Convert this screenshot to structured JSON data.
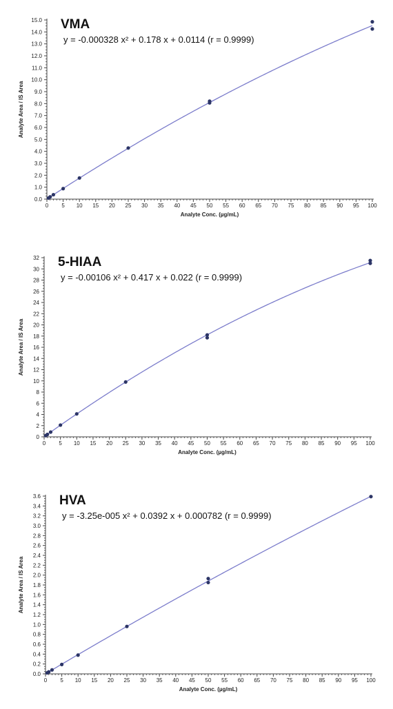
{
  "chart_data": [
    {
      "type": "scatter",
      "title": "VMA",
      "equation": "y = -0.000328 x² + 0.178 x + 0.0114 (r = 0.9999)",
      "xlabel": "Analyte Conc. (µg/mL)",
      "ylabel": "Analyte Area / IS Area",
      "xlim": [
        0,
        100
      ],
      "ylim": [
        0,
        15
      ],
      "x_ticks": [
        0,
        5,
        10,
        15,
        20,
        25,
        30,
        35,
        40,
        45,
        50,
        55,
        60,
        65,
        70,
        75,
        80,
        85,
        90,
        95,
        100
      ],
      "x_tick_labels": [
        "0",
        "5",
        "10",
        "15",
        "20",
        "25",
        "30",
        "35",
        "40",
        "45",
        "50",
        "55",
        "60",
        "65",
        "70",
        "75",
        "80",
        "85",
        "90",
        "95",
        "100"
      ],
      "y_ticks": [
        0,
        1,
        2,
        3,
        4,
        5,
        6,
        7,
        8,
        9,
        10,
        11,
        12,
        13,
        14,
        15
      ],
      "y_tick_labels": [
        "0.0",
        "1.0",
        "2.0",
        "3.0",
        "4.0",
        "5.0",
        "6.0",
        "7.0",
        "8.0",
        "9.0",
        "10.0",
        "11.0",
        "12.0",
        "13.0",
        "14.0",
        "15.0"
      ],
      "curve": {
        "a": -0.000328,
        "b": 0.178,
        "c": 0.0114
      },
      "points": {
        "x": [
          0.5,
          1,
          2,
          5,
          10,
          25,
          50,
          50,
          100,
          100
        ],
        "y": [
          0.09,
          0.19,
          0.37,
          0.88,
          1.77,
          4.28,
          8.06,
          8.2,
          14.25,
          14.85
        ]
      },
      "grid": false
    },
    {
      "type": "scatter",
      "title": "5-HIAA",
      "equation": "y = -0.00106 x² + 0.417 x + 0.022 (r = 0.9999)",
      "xlabel": "Analyte Conc. (µg/mL)",
      "ylabel": "Analyte Area / IS Area",
      "xlim": [
        0,
        100
      ],
      "ylim": [
        0,
        32
      ],
      "x_ticks": [
        0,
        5,
        10,
        15,
        20,
        25,
        30,
        35,
        40,
        45,
        50,
        55,
        60,
        65,
        70,
        75,
        80,
        85,
        90,
        95,
        100
      ],
      "x_tick_labels": [
        "0",
        "5",
        "10",
        "15",
        "20",
        "25",
        "30",
        "35",
        "40",
        "45",
        "50",
        "55",
        "60",
        "65",
        "70",
        "75",
        "80",
        "85",
        "90",
        "95",
        "100"
      ],
      "y_ticks": [
        0,
        2,
        4,
        6,
        8,
        10,
        12,
        14,
        16,
        18,
        20,
        22,
        24,
        26,
        28,
        30,
        32
      ],
      "y_tick_labels": [
        "0",
        "2",
        "4",
        "6",
        "8",
        "10",
        "12",
        "14",
        "16",
        "18",
        "20",
        "22",
        "24",
        "26",
        "28",
        "30",
        "32"
      ],
      "curve": {
        "a": -0.00106,
        "b": 0.417,
        "c": 0.022
      },
      "points": {
        "x": [
          0.5,
          1,
          2,
          5,
          10,
          25,
          50,
          50,
          100,
          100
        ],
        "y": [
          0.22,
          0.43,
          0.85,
          2.1,
          4.1,
          9.8,
          17.7,
          18.2,
          31.0,
          31.5
        ]
      },
      "grid": false
    },
    {
      "type": "scatter",
      "title": "HVA",
      "equation": "y = -3.25e-005 x² + 0.0392 x + 0.000782 (r = 0.9999)",
      "xlabel": "Analyte Conc. (µg/mL)",
      "ylabel": "Analyte Area / IS Area",
      "xlim": [
        0,
        100
      ],
      "ylim": [
        0,
        3.6
      ],
      "x_ticks": [
        0,
        5,
        10,
        15,
        20,
        25,
        30,
        35,
        40,
        45,
        50,
        55,
        60,
        65,
        70,
        75,
        80,
        85,
        90,
        95,
        100
      ],
      "x_tick_labels": [
        "0",
        "5",
        "10",
        "15",
        "20",
        "25",
        "30",
        "35",
        "40",
        "45",
        "50",
        "55",
        "60",
        "65",
        "70",
        "75",
        "80",
        "85",
        "90",
        "95",
        "100"
      ],
      "y_ticks": [
        0,
        0.2,
        0.4,
        0.6,
        0.8,
        1.0,
        1.2,
        1.4,
        1.6,
        1.8,
        2.0,
        2.2,
        2.4,
        2.6,
        2.8,
        3.0,
        3.2,
        3.4,
        3.6
      ],
      "y_tick_labels": [
        "0.0",
        "0.2",
        "0.4",
        "0.6",
        "0.8",
        "1.0",
        "1.2",
        "1.4",
        "1.6",
        "1.8",
        "2.0",
        "2.2",
        "2.4",
        "2.6",
        "2.8",
        "3.0",
        "3.2",
        "3.4",
        "3.6"
      ],
      "curve": {
        "a": -3.25e-05,
        "b": 0.0392,
        "c": 0.000782
      },
      "points": {
        "x": [
          0.5,
          1,
          2,
          5,
          10,
          25,
          50,
          50,
          100
        ],
        "y": [
          0.02,
          0.04,
          0.08,
          0.19,
          0.38,
          0.96,
          1.85,
          1.93,
          3.59
        ]
      },
      "grid": false
    }
  ],
  "colors": {
    "curve": "#7b7ccb",
    "points": "#2c3566",
    "axis": "#444444"
  }
}
